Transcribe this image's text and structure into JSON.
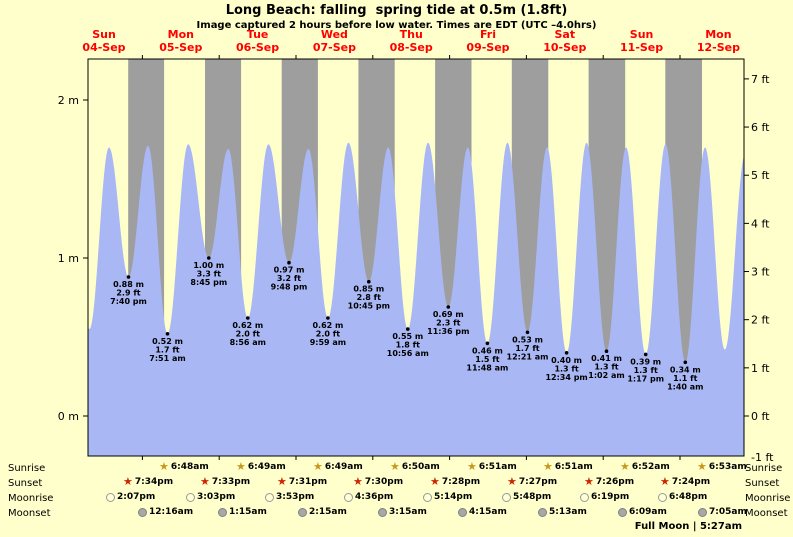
{
  "title": "Long Beach: falling  spring tide at 0.5m (1.8ft)",
  "subtitle": "Image captured 2 hours before low water. Times are EDT (UTC –4.0hrs)",
  "colors": {
    "background": "#ffffcc",
    "night_band": "#9e9e9e",
    "tide_fill": "#a9b8f5",
    "day_label": "#ff0000",
    "sunrise_star": "#c8981e",
    "sunset_star": "#cc2500",
    "moonrise_fill": "#ffffd8",
    "moonset_fill": "#a8a8a8",
    "axis": "#000000"
  },
  "chart_data": {
    "type": "area",
    "title": "Long Beach: falling  spring tide at 0.5m (1.8ft)",
    "x_axis": {
      "days": [
        {
          "name": "Sun",
          "date": "04-Sep"
        },
        {
          "name": "Mon",
          "date": "05-Sep"
        },
        {
          "name": "Tue",
          "date": "06-Sep"
        },
        {
          "name": "Wed",
          "date": "07-Sep"
        },
        {
          "name": "Thu",
          "date": "08-Sep"
        },
        {
          "name": "Fri",
          "date": "09-Sep"
        },
        {
          "name": "Sat",
          "date": "10-Sep"
        },
        {
          "name": "Sun",
          "date": "11-Sep"
        },
        {
          "name": "Mon",
          "date": "12-Sep"
        }
      ]
    },
    "y_axis": {
      "left_unit": "m",
      "left_ticks": [
        0,
        1,
        2
      ],
      "right_unit": "ft",
      "right_ticks": [
        -1,
        0,
        1,
        2,
        3,
        4,
        5,
        6,
        7
      ]
    },
    "t_unit": "hours since 04-Sep 00:00",
    "x_range_hours": [
      7,
      212
    ],
    "ylim_m": [
      -0.25,
      2.25
    ],
    "high_tide_approx_m": 1.7,
    "tide_extremes": [
      {
        "t": 1.3,
        "m": 1.7,
        "kind": "high"
      },
      {
        "t": 7.45,
        "m": 0.55,
        "kind": "low"
      },
      {
        "t": 13.56,
        "m": 1.7,
        "kind": "high"
      },
      {
        "t": 19.67,
        "m": 0.88,
        "kind": "low",
        "label": [
          "0.88 m",
          "2.9 ft",
          "7:40 pm"
        ]
      },
      {
        "t": 25.76,
        "m": 1.71,
        "kind": "high"
      },
      {
        "t": 31.85,
        "m": 0.52,
        "kind": "low",
        "label": [
          "0.52 m",
          "1.7 ft",
          "7:51 am"
        ]
      },
      {
        "t": 38.3,
        "m": 1.72,
        "kind": "high"
      },
      {
        "t": 44.75,
        "m": 1.0,
        "kind": "low",
        "label": [
          "1.00 m",
          "3.3 ft",
          "8:45 pm"
        ]
      },
      {
        "t": 50.84,
        "m": 1.69,
        "kind": "high"
      },
      {
        "t": 56.93,
        "m": 0.62,
        "kind": "low",
        "label": [
          "0.62 m",
          "2.0 ft",
          "8:56 am"
        ]
      },
      {
        "t": 63.37,
        "m": 1.72,
        "kind": "high"
      },
      {
        "t": 69.8,
        "m": 0.97,
        "kind": "low",
        "label": [
          "0.97 m",
          "3.2 ft",
          "9:48 pm"
        ]
      },
      {
        "t": 75.89,
        "m": 1.69,
        "kind": "high"
      },
      {
        "t": 81.98,
        "m": 0.62,
        "kind": "low",
        "label": [
          "0.62 m",
          "2.0 ft",
          "9:59 am"
        ]
      },
      {
        "t": 88.37,
        "m": 1.73,
        "kind": "high"
      },
      {
        "t": 94.75,
        "m": 0.85,
        "kind": "low",
        "label": [
          "0.85 m",
          "2.8 ft",
          "10:45 pm"
        ]
      },
      {
        "t": 100.84,
        "m": 1.7,
        "kind": "high"
      },
      {
        "t": 106.93,
        "m": 0.55,
        "kind": "low",
        "label": [
          "0.55 m",
          "1.8 ft",
          "10:56 am"
        ]
      },
      {
        "t": 113.27,
        "m": 1.73,
        "kind": "high"
      },
      {
        "t": 119.6,
        "m": 0.69,
        "kind": "low",
        "label": [
          "0.69 m",
          "2.3 ft",
          "11:36 pm"
        ]
      },
      {
        "t": 125.7,
        "m": 1.7,
        "kind": "high"
      },
      {
        "t": 131.8,
        "m": 0.46,
        "kind": "low",
        "label": [
          "0.46 m",
          "1.5 ft",
          "11:48 am"
        ]
      },
      {
        "t": 138.08,
        "m": 1.73,
        "kind": "high"
      },
      {
        "t": 144.35,
        "m": 0.53,
        "kind": "low",
        "label": [
          "0.53 m",
          "1.7 ft",
          "12:21 am"
        ]
      },
      {
        "t": 150.46,
        "m": 1.7,
        "kind": "high"
      },
      {
        "t": 156.57,
        "m": 0.4,
        "kind": "low",
        "label": [
          "0.40 m",
          "1.3 ft",
          "12:34 pm"
        ]
      },
      {
        "t": 162.8,
        "m": 1.73,
        "kind": "high"
      },
      {
        "t": 169.03,
        "m": 0.41,
        "kind": "low",
        "label": [
          "0.41 m",
          "1.3 ft",
          "1:02 am"
        ]
      },
      {
        "t": 175.16,
        "m": 1.7,
        "kind": "high"
      },
      {
        "t": 181.28,
        "m": 0.39,
        "kind": "low",
        "label": [
          "0.39 m",
          "1.3 ft",
          "1:17 pm"
        ]
      },
      {
        "t": 187.48,
        "m": 1.72,
        "kind": "high"
      },
      {
        "t": 193.67,
        "m": 0.34,
        "kind": "low",
        "label": [
          "0.34 m",
          "1.1 ft",
          "1:40 am"
        ]
      },
      {
        "t": 199.83,
        "m": 1.7,
        "kind": "high"
      },
      {
        "t": 206.0,
        "m": 0.42,
        "kind": "low"
      },
      {
        "t": 212.4,
        "m": 1.66,
        "kind": "high"
      }
    ]
  },
  "almanac": {
    "rows": [
      {
        "id": "sunrise",
        "label": "Sunrise",
        "start_day": 1,
        "entries": [
          "6:48am",
          "6:49am",
          "6:49am",
          "6:50am",
          "6:51am",
          "6:51am",
          "6:52am",
          "6:53am"
        ]
      },
      {
        "id": "sunset",
        "label": "Sunset",
        "start_day": 0,
        "entries": [
          "7:34pm",
          "7:33pm",
          "7:31pm",
          "7:30pm",
          "7:28pm",
          "7:27pm",
          "7:26pm",
          "7:24pm"
        ]
      },
      {
        "id": "moonrise",
        "label": "Moonrise",
        "start_day": 0,
        "entries": [
          "2:07pm",
          "3:03pm",
          "3:53pm",
          "4:36pm",
          "5:14pm",
          "5:48pm",
          "6:19pm",
          "6:48pm"
        ]
      },
      {
        "id": "moonset",
        "label": "Moonset",
        "start_day": 1,
        "entries": [
          "12:16am",
          "1:15am",
          "2:15am",
          "3:15am",
          "4:15am",
          "5:13am",
          "6:09am",
          "7:05am"
        ]
      }
    ],
    "full_moon": "Full Moon | 5:27am"
  }
}
